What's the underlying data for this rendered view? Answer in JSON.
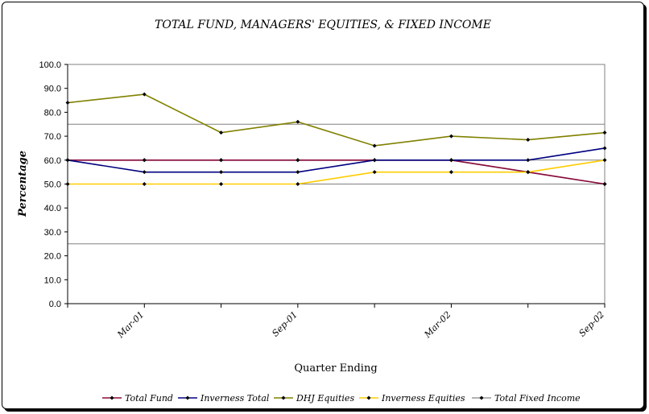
{
  "chart_data": {
    "type": "line",
    "title": "TOTAL FUND, MANAGERS' EQUITIES, & FIXED INCOME",
    "xlabel": "Quarter Ending",
    "ylabel": "Percentage",
    "ylim": [
      0,
      100
    ],
    "yticks": [
      "0.0",
      "10.0",
      "20.0",
      "30.0",
      "40.0",
      "50.0",
      "60.0",
      "70.0",
      "80.0",
      "90.0",
      "100.0"
    ],
    "categories": [
      "",
      "Mar-01",
      "",
      "Sep-01",
      "",
      "Mar-02",
      "",
      "Sep-02"
    ],
    "reference_lines": [
      75,
      60,
      50,
      25
    ],
    "grid": false,
    "legend": "bottom",
    "series": [
      {
        "name": "Total Fund",
        "color": "#8b0a3a",
        "values": [
          60,
          60,
          60,
          60,
          60,
          60,
          55,
          50
        ]
      },
      {
        "name": "Inverness Total",
        "color": "#000080",
        "values": [
          60,
          55,
          55,
          55,
          60,
          60,
          60,
          65
        ]
      },
      {
        "name": "DHJ Equities",
        "color": "#808000",
        "values": [
          84,
          87.5,
          71.5,
          76,
          66,
          70,
          68.5,
          71.5
        ]
      },
      {
        "name": "Inverness Equities",
        "color": "#ffcc00",
        "values": [
          50,
          50,
          50,
          50,
          55,
          55,
          55,
          60
        ]
      },
      {
        "name": "Total Fixed Income",
        "color": "#999999",
        "values": [
          60,
          60,
          60,
          60,
          60,
          60,
          55,
          50
        ]
      }
    ]
  }
}
